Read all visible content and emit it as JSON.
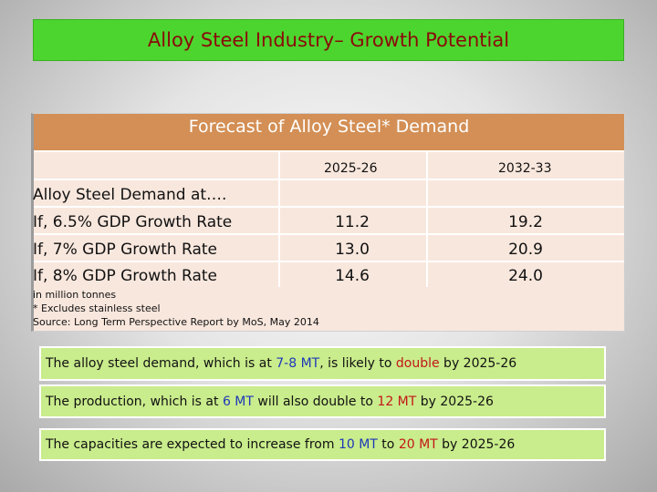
{
  "slide_title": "Alloy Steel Industry– Growth Potential",
  "table": {
    "heading": "Forecast of Alloy Steel* Demand",
    "col_2025": "2025-26",
    "col_2032": "2032-33",
    "row_header": "Alloy Steel Demand at….",
    "rows": [
      {
        "label": "If, 6.5% GDP Growth Rate",
        "v2025": "11.2",
        "v2032": "19.2"
      },
      {
        "label": "If, 7% GDP Growth Rate",
        "v2025": "13.0",
        "v2032": "20.9"
      },
      {
        "label": "If, 8% GDP Growth Rate",
        "v2025": "14.6",
        "v2032": "24.0"
      }
    ],
    "notes": [
      "in million tonnes",
      "* Excludes stainless steel",
      "Source: Long Term Perspective Report by MoS, May 2014"
    ]
  },
  "callouts": [
    {
      "p1": "The alloy steel demand, which is at ",
      "h1": "7-8 MT",
      "p2": ", is likely to ",
      "h2": "double",
      "p3": " by 2025-26"
    },
    {
      "p1": "The production, which is at ",
      "h1": "6 MT",
      "p2": " will also double to ",
      "h2": "12 MT",
      "p3": " by 2025-26"
    },
    {
      "p1": "The capacities are expected to increase from ",
      "h1": "10 MT",
      "p2": " to ",
      "h2": "20 MT",
      "p3": " by 2025-26"
    }
  ],
  "colors": {
    "title_bg": "#4cd52e",
    "title_text": "#8a0a0a",
    "table_header": "#d38f55",
    "table_body": "#f8e7dd",
    "callout_bg": "#c9ec8c",
    "highlight_blue": "#1d38b8",
    "highlight_red": "#c31717"
  }
}
